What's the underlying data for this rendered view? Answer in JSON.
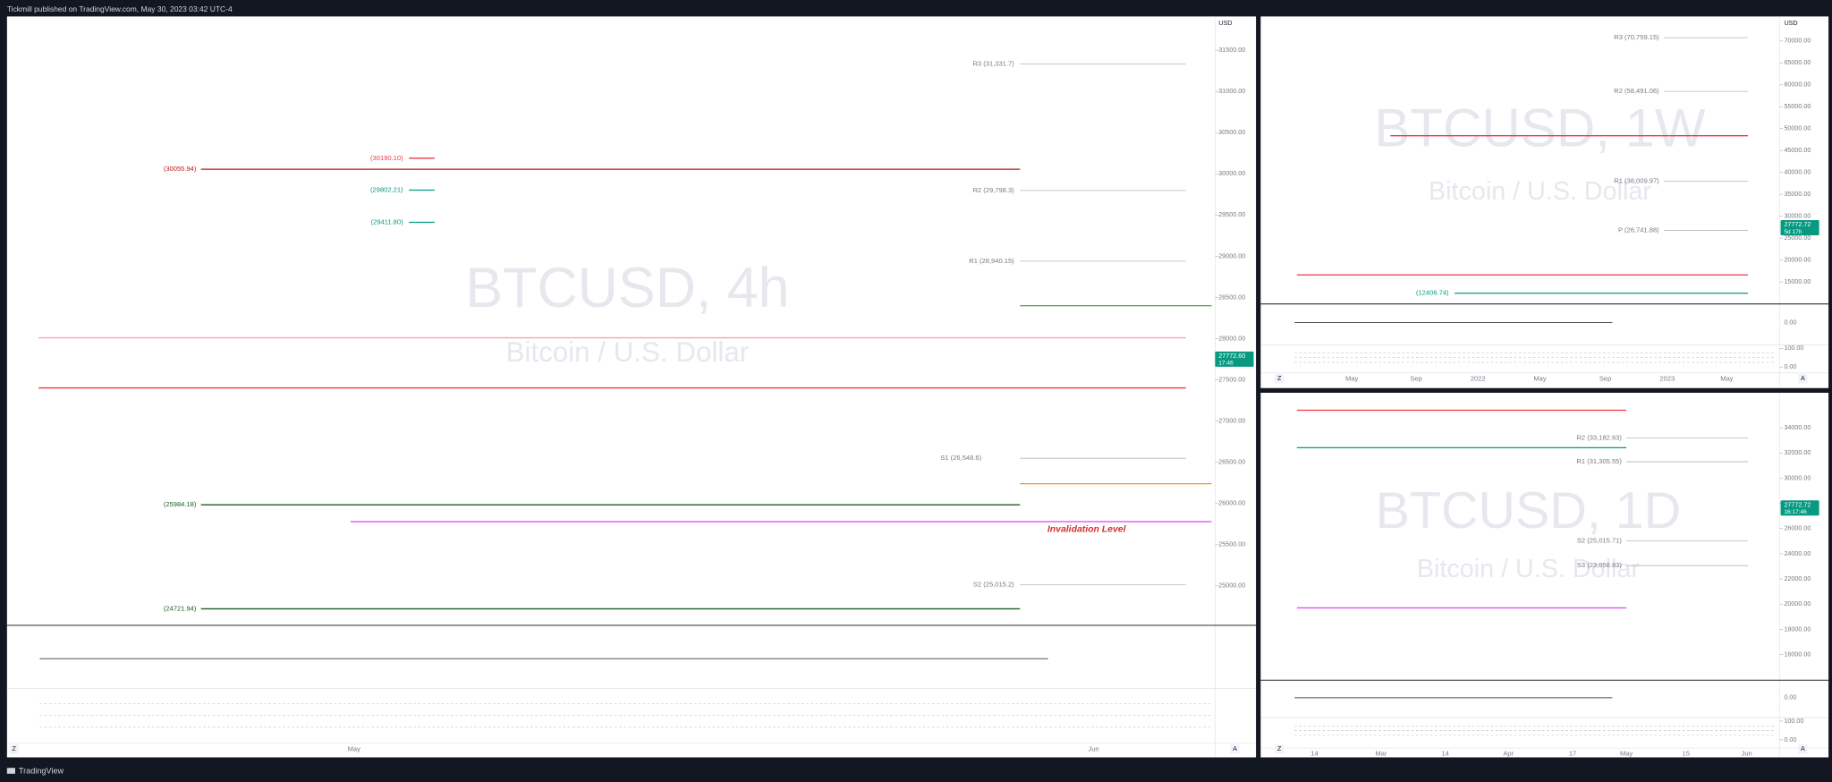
{
  "header": {
    "publisher": "Tickmill published on TradingView.com, May 30, 2023 03:42 UTC-4"
  },
  "footer": {
    "brand": "TradingView"
  },
  "panels": [
    {
      "title": "BTCUSD, 4h",
      "description": "Bitcoin / U.S. Dollar",
      "currency": "USD",
      "ylim": [
        24550,
        31910
      ],
      "yticks": [
        {
          "value": 25000,
          "label": "25000.00"
        },
        {
          "value": 25500,
          "label": "25500.00"
        },
        {
          "value": 26000,
          "label": "26000.00"
        },
        {
          "value": 26500,
          "label": "26500.00"
        },
        {
          "value": 27000,
          "label": "27000.00"
        },
        {
          "value": 27500,
          "label": "27500.00"
        },
        {
          "value": 28000,
          "label": "28000.00"
        },
        {
          "value": 28500,
          "label": "28500.00"
        },
        {
          "value": 29000,
          "label": "29000.00"
        },
        {
          "value": 29500,
          "label": "29500.00"
        },
        {
          "value": 30000,
          "label": "30000.00"
        },
        {
          "value": 30500,
          "label": "30500.00"
        },
        {
          "value": 31000,
          "label": "31000.00"
        },
        {
          "value": 31500,
          "label": "31500.00"
        }
      ],
      "last_price": {
        "value": 27772.6,
        "label": "27772.60"
      },
      "countdown": "17:46",
      "levels": [
        {
          "label": "R3 (31,331.7)",
          "value": 31331.7,
          "color": "#b2b5be"
        },
        {
          "label": "(30190.10)",
          "value": 30190.1,
          "color": "#f23645"
        },
        {
          "label": "(30055.94)",
          "value": 30055.94,
          "color": "#b71c1c"
        },
        {
          "label": "(29802.21)",
          "value": 29802.21,
          "color": "#089981"
        },
        {
          "label": "R2 (29,798.3)",
          "value": 29798.3,
          "color": "#b2b5be"
        },
        {
          "label": "(29411.80)",
          "value": 29411.8,
          "color": "#089981"
        },
        {
          "label": "R1 (28,940.15)",
          "value": 28940.15,
          "color": "#b2b5be"
        },
        {
          "value": 28400,
          "color": "#4caf50"
        },
        {
          "value": 28010,
          "color": "#f7a5ab"
        },
        {
          "value": 27402,
          "color": "#f23645"
        },
        {
          "label": "S1 (26,548.6)",
          "value": 26548.6,
          "color": "#b2b5be"
        },
        {
          "value": 26240,
          "color": "#ff9800"
        },
        {
          "label": "(25984.18)",
          "value": 25984.18,
          "color": "#1b5e20"
        },
        {
          "value": 25780,
          "color": "#e040fb"
        },
        {
          "label": "S2 (25,015.2)",
          "value": 25015.2,
          "color": "#b2b5be"
        },
        {
          "label": "(24721.94)",
          "value": 24721.94,
          "color": "#1b5e20"
        }
      ],
      "annotation": "Invalidation Level",
      "x_labels": [
        "May",
        "Jun"
      ],
      "scale_buttons": [
        "Z",
        "A"
      ]
    },
    {
      "title": "BTCUSD, 1W",
      "description": "Bitcoin / U.S. Dollar",
      "currency": "USD",
      "ylim": [
        10500,
        75600
      ],
      "yticks": [
        {
          "value": 15000,
          "label": "15000.00"
        },
        {
          "value": 20000,
          "label": "20000.00"
        },
        {
          "value": 25000,
          "label": "25000.00"
        },
        {
          "value": 30000,
          "label": "30000.00"
        },
        {
          "value": 35000,
          "label": "35000.00"
        },
        {
          "value": 40000,
          "label": "40000.00"
        },
        {
          "value": 45000,
          "label": "45000.00"
        },
        {
          "value": 50000,
          "label": "50000.00"
        },
        {
          "value": 55000,
          "label": "55000.00"
        },
        {
          "value": 60000,
          "label": "60000.00"
        },
        {
          "value": 65000,
          "label": "65000.00"
        },
        {
          "value": 70000,
          "label": "70000.00"
        }
      ],
      "last_price": {
        "value": 27772.72,
        "label": "27772.72"
      },
      "countdown": "5d 17h",
      "levels": [
        {
          "label": "R3 (70,759.15)",
          "value": 70759.15,
          "color": "#b2b5be"
        },
        {
          "label": "R2 (58,491.06)",
          "value": 58491.06,
          "color": "#b2b5be"
        },
        {
          "value": 48371,
          "color": "#f23645"
        },
        {
          "label": "R1 (38,009.97)",
          "value": 38009.97,
          "color": "#b2b5be"
        },
        {
          "label": "P (26,741.88)",
          "value": 26741.88,
          "color": "#b2b5be"
        },
        {
          "value": 16600,
          "color": "#f23645"
        },
        {
          "label": "(12406.74)",
          "value": 12406.74,
          "color": "#089981"
        }
      ],
      "rsi_ticks": [
        {
          "value": 0,
          "label": "0.00"
        }
      ],
      "stoch_ticks": [
        {
          "value": 100,
          "label": "100.00"
        },
        {
          "value": 0,
          "label": "0.00"
        }
      ],
      "x_labels": [
        "May",
        "Sep",
        "2022",
        "May",
        "Sep",
        "2023",
        "May"
      ],
      "scale_buttons": [
        "Z",
        "A"
      ]
    },
    {
      "title": "BTCUSD, 1D",
      "description": "Bitcoin / U.S. Dollar",
      "ylim": [
        14150,
        36780
      ],
      "yticks": [
        {
          "value": 16000,
          "label": "16000.00"
        },
        {
          "value": 18000,
          "label": "18000.00"
        },
        {
          "value": 20000,
          "label": "20000.00"
        },
        {
          "value": 22000,
          "label": "22000.00"
        },
        {
          "value": 24000,
          "label": "24000.00"
        },
        {
          "value": 26000,
          "label": "26000.00"
        },
        {
          "value": 28000,
          "label": "28000.00"
        },
        {
          "value": 30000,
          "label": "30000.00"
        },
        {
          "value": 32000,
          "label": "32000.00"
        },
        {
          "value": 34000,
          "label": "34000.00"
        }
      ],
      "last_price": {
        "value": 27772.72,
        "label": "27772.72"
      },
      "countdown": "16:17:46",
      "levels": [
        {
          "value": 35390,
          "color": "#f23645"
        },
        {
          "label": "R2 (33,182.63)",
          "value": 33182.63,
          "color": "#b2b5be"
        },
        {
          "value": 32420,
          "color": "#089981"
        },
        {
          "label": "R1 (31,305.55)",
          "value": 31305.55,
          "color": "#b2b5be"
        },
        {
          "label": "S2 (25,015.71)",
          "value": 25015.71,
          "color": "#b2b5be"
        },
        {
          "label": "S3 (23,058.83)",
          "value": 23058.83,
          "color": "#b2b5be"
        },
        {
          "value": 19710,
          "color": "#e040fb"
        }
      ],
      "rsi_ticks": [
        {
          "value": 0,
          "label": "0.00"
        }
      ],
      "stoch_ticks": [
        {
          "value": 100,
          "label": "100.00"
        },
        {
          "value": 0,
          "label": "0.00"
        }
      ],
      "x_labels": [
        "14",
        "Mar",
        "14",
        "Apr",
        "17",
        "May",
        "15",
        "Jun"
      ],
      "scale_buttons": [
        "Z",
        "A"
      ]
    }
  ]
}
